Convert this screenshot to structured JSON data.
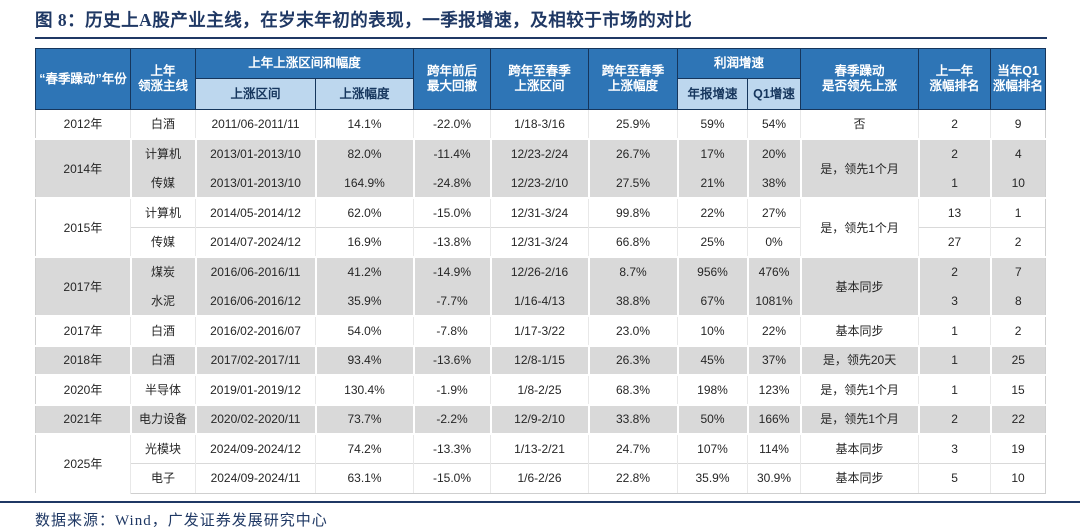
{
  "title": "图 8：历史上A股产业主线，在岁末年初的表现，一季报增速，及相较于市场的对比",
  "source": "数据来源：Wind，广发证券发展研究中心",
  "colors": {
    "header_bg": "#2E75B6",
    "subheader_bg": "#BDD7EE",
    "row_gray": "#D9D9D9",
    "navy_accent": "#1F3864"
  },
  "table": {
    "header": {
      "year": "“春季躁动”年份",
      "lead": "上年\n领涨主线",
      "range_group": "上年上涨区间和幅度",
      "range": "上涨区间",
      "gain": "上涨幅度",
      "drawdown": "跨年前后\n最大回撤",
      "spring_range": "跨年至春季\n上涨区间",
      "spring_gain": "跨年至春季\n上涨幅度",
      "profit_group": "利润增速",
      "annual": "年报增速",
      "q1": "Q1增速",
      "sync": "春季躁动\n是否领先上涨",
      "rank_prev": "上一年\n涨幅排名",
      "rank_q1": "当年Q1\n涨幅排名"
    },
    "groups": [
      {
        "year": "2012年",
        "shade": "white",
        "sync_merged": "否",
        "rows": [
          {
            "lead": "白酒",
            "range": "2011/06-2011/11",
            "gain": "14.1%",
            "drawdown": "-22.0%",
            "spring_range": "1/18-3/16",
            "spring_gain": "25.9%",
            "annual": "59%",
            "q1": "54%",
            "rank_prev": "2",
            "rank_q1": "9"
          }
        ]
      },
      {
        "year": "2014年",
        "shade": "gray",
        "sync_merged": "是，领先1个月",
        "rows": [
          {
            "lead": "计算机",
            "range": "2013/01-2013/10",
            "gain": "82.0%",
            "drawdown": "-11.4%",
            "spring_range": "12/23-2/24",
            "spring_gain": "26.7%",
            "annual": "17%",
            "q1": "20%",
            "rank_prev": "2",
            "rank_q1": "4"
          },
          {
            "lead": "传媒",
            "range": "2013/01-2013/10",
            "gain": "164.9%",
            "drawdown": "-24.8%",
            "spring_range": "12/23-2/10",
            "spring_gain": "27.5%",
            "annual": "21%",
            "q1": "38%",
            "rank_prev": "1",
            "rank_q1": "10"
          }
        ]
      },
      {
        "year": "2015年",
        "shade": "white",
        "sync_merged": "是，领先1个月",
        "rows": [
          {
            "lead": "计算机",
            "range": "2014/05-2014/12",
            "gain": "62.0%",
            "drawdown": "-15.0%",
            "spring_range": "12/31-3/24",
            "spring_gain": "99.8%",
            "annual": "22%",
            "q1": "27%",
            "rank_prev": "13",
            "rank_q1": "1"
          },
          {
            "lead": "传媒",
            "range": "2014/07-2024/12",
            "gain": "16.9%",
            "drawdown": "-13.8%",
            "spring_range": "12/31-3/24",
            "spring_gain": "66.8%",
            "annual": "25%",
            "q1": "0%",
            "rank_prev": "27",
            "rank_q1": "2"
          }
        ]
      },
      {
        "year": "2017年",
        "shade": "gray",
        "sync_merged": "基本同步",
        "rows": [
          {
            "lead": "煤炭",
            "range": "2016/06-2016/11",
            "gain": "41.2%",
            "drawdown": "-14.9%",
            "spring_range": "12/26-2/16",
            "spring_gain": "8.7%",
            "annual": "956%",
            "q1": "476%",
            "rank_prev": "2",
            "rank_q1": "7"
          },
          {
            "lead": "水泥",
            "range": "2016/06-2016/12",
            "gain": "35.9%",
            "drawdown": "-7.7%",
            "spring_range": "1/16-4/13",
            "spring_gain": "38.8%",
            "annual": "67%",
            "q1": "1081%",
            "rank_prev": "3",
            "rank_q1": "8"
          }
        ]
      },
      {
        "year": "2017年",
        "shade": "white",
        "sync_merged": "基本同步",
        "rows": [
          {
            "lead": "白酒",
            "range": "2016/02-2016/07",
            "gain": "54.0%",
            "drawdown": "-7.8%",
            "spring_range": "1/17-3/22",
            "spring_gain": "23.0%",
            "annual": "10%",
            "q1": "22%",
            "rank_prev": "1",
            "rank_q1": "2"
          }
        ]
      },
      {
        "year": "2018年",
        "shade": "gray",
        "sync_merged": "是，领先20天",
        "rows": [
          {
            "lead": "白酒",
            "range": "2017/02-2017/11",
            "gain": "93.4%",
            "drawdown": "-13.6%",
            "spring_range": "12/8-1/15",
            "spring_gain": "26.3%",
            "annual": "45%",
            "q1": "37%",
            "rank_prev": "1",
            "rank_q1": "25"
          }
        ]
      },
      {
        "year": "2020年",
        "shade": "white",
        "sync_merged": "是，领先1个月",
        "rows": [
          {
            "lead": "半导体",
            "range": "2019/01-2019/12",
            "gain": "130.4%",
            "drawdown": "-1.9%",
            "spring_range": "1/8-2/25",
            "spring_gain": "68.3%",
            "annual": "198%",
            "q1": "123%",
            "rank_prev": "1",
            "rank_q1": "15"
          }
        ]
      },
      {
        "year": "2021年",
        "shade": "gray",
        "sync_merged": "是，领先1个月",
        "rows": [
          {
            "lead": "电力设备",
            "range": "2020/02-2020/11",
            "gain": "73.7%",
            "drawdown": "-2.2%",
            "spring_range": "12/9-2/10",
            "spring_gain": "33.8%",
            "annual": "50%",
            "q1": "166%",
            "rank_prev": "2",
            "rank_q1": "22"
          }
        ]
      },
      {
        "year": "2025年",
        "shade": "white",
        "rows": [
          {
            "lead": "光模块",
            "range": "2024/09-2024/12",
            "gain": "74.2%",
            "drawdown": "-13.3%",
            "spring_range": "1/13-2/21",
            "spring_gain": "24.7%",
            "annual": "107%",
            "q1": "114%",
            "sync": "基本同步",
            "rank_prev": "3",
            "rank_q1": "19"
          },
          {
            "lead": "电子",
            "range": "2024/09-2024/11",
            "gain": "63.1%",
            "drawdown": "-15.0%",
            "spring_range": "1/6-2/26",
            "spring_gain": "22.8%",
            "annual": "35.9%",
            "q1": "30.9%",
            "sync": "基本同步",
            "rank_prev": "5",
            "rank_q1": "10"
          }
        ]
      }
    ]
  }
}
